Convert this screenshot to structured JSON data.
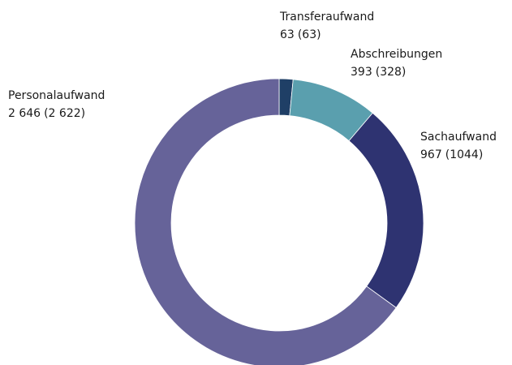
{
  "chart_data": {
    "type": "donut",
    "categories": [
      "Transferaufwand",
      "Abschreibungen",
      "Sachaufwand",
      "Personalaufwand"
    ],
    "values": [
      63,
      393,
      967,
      2646
    ],
    "value_labels": [
      "63",
      "393",
      "967",
      "2 646"
    ],
    "previous_values": [
      63,
      328,
      1044,
      2622
    ],
    "previous_labels": [
      "(63)",
      "(328)",
      "(1044)",
      "(2 622)"
    ],
    "colors": [
      "#1f3f66",
      "#5a9fae",
      "#2e3371",
      "#666399"
    ]
  }
}
